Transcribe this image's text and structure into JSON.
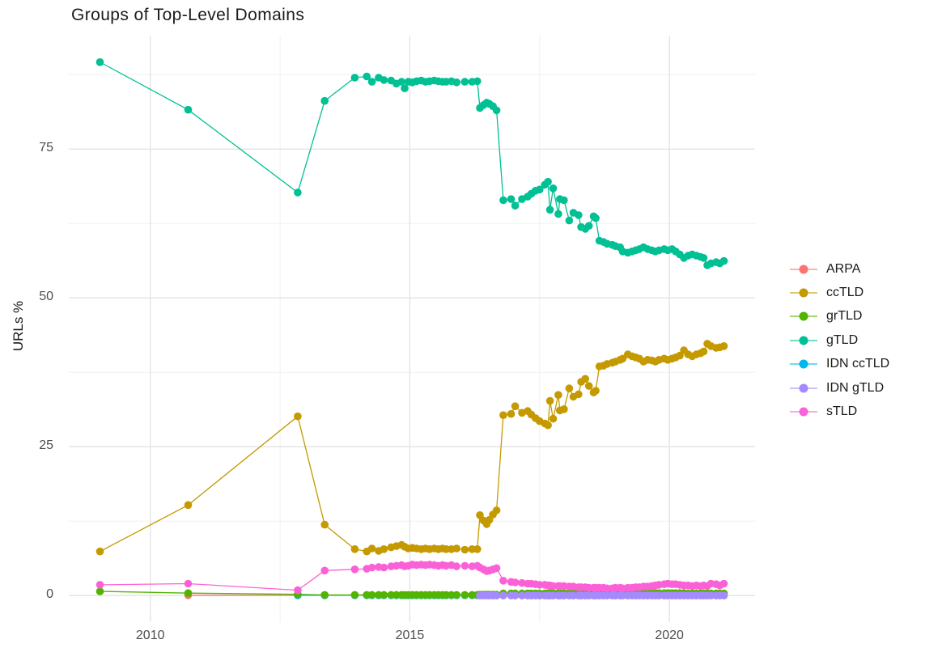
{
  "chart_data": {
    "type": "scatter",
    "title": "Groups of Top-Level Domains",
    "xlabel": "",
    "ylabel": "URLs %",
    "grid": true,
    "legend_position": "right",
    "x_axis": {
      "ticks": [
        2010,
        2015,
        2020
      ],
      "minor_ticks": [
        2012.5,
        2017.5
      ],
      "range": [
        2008.43,
        2021.65
      ]
    },
    "y_axis": {
      "ticks": [
        0,
        25,
        50,
        75
      ],
      "minor_ticks": [
        12.5,
        37.5,
        62.5,
        87.5
      ],
      "range": [
        -4.46,
        94.06
      ]
    },
    "x": [
      2009.03,
      2010.73,
      2012.84,
      2013.36,
      2013.94,
      2014.17,
      2014.27,
      2014.4,
      2014.5,
      2014.64,
      2014.74,
      2014.84,
      2014.9,
      2014.97,
      2015.05,
      2015.13,
      2015.22,
      2015.3,
      2015.38,
      2015.47,
      2015.55,
      2015.63,
      2015.7,
      2015.8,
      2015.9,
      2016.06,
      2016.2,
      2016.3,
      2016.35,
      2016.42,
      2016.48,
      2016.53,
      2016.6,
      2016.67,
      2016.8,
      2016.95,
      2017.03,
      2017.16,
      2017.27,
      2017.34,
      2017.42,
      2017.5,
      2017.6,
      2017.66,
      2017.7,
      2017.76,
      2017.86,
      2017.89,
      2017.97,
      2018.07,
      2018.15,
      2018.25,
      2018.3,
      2018.38,
      2018.45,
      2018.54,
      2018.58,
      2018.65,
      2018.73,
      2018.8,
      2018.9,
      2018.96,
      2019.05,
      2019.1,
      2019.2,
      2019.28,
      2019.35,
      2019.42,
      2019.5,
      2019.58,
      2019.66,
      2019.73,
      2019.8,
      2019.9,
      2019.97,
      2020.05,
      2020.12,
      2020.2,
      2020.28,
      2020.36,
      2020.44,
      2020.52,
      2020.6,
      2020.66,
      2020.73,
      2020.8,
      2020.9,
      2020.97,
      2021.05
    ],
    "legend_order": [
      "ARPA",
      "ccTLD",
      "grTLD",
      "gTLD",
      "IDN ccTLD",
      "IDN gTLD",
      "sTLD"
    ],
    "series": [
      {
        "name": "ARPA",
        "color": "#F8766D",
        "points": [
          [
            2010.73,
            0.05
          ],
          [
            2012.84,
            0.05
          ],
          [
            2013.36,
            0.05
          ]
        ]
      },
      {
        "name": "ccTLD",
        "color": "#C49A00",
        "values": [
          7.4,
          15.2,
          30.1,
          11.9,
          7.8,
          7.4,
          7.9,
          7.5,
          7.8,
          8.1,
          8.3,
          8.5,
          8.2,
          7.9,
          8.0,
          7.9,
          7.8,
          7.9,
          7.8,
          7.9,
          7.8,
          7.9,
          7.8,
          7.8,
          7.9,
          7.7,
          7.8,
          7.8,
          13.5,
          12.6,
          12.0,
          12.7,
          13.6,
          14.3,
          30.3,
          30.5,
          31.8,
          30.7,
          31.0,
          30.4,
          29.8,
          29.3,
          28.9,
          28.6,
          32.7,
          29.7,
          33.7,
          31.1,
          31.3,
          34.8,
          33.4,
          33.8,
          35.9,
          36.4,
          35.2,
          34.1,
          34.4,
          38.5,
          38.6,
          38.9,
          39.1,
          39.3,
          39.6,
          39.8,
          40.5,
          40.2,
          40.0,
          39.8,
          39.3,
          39.6,
          39.5,
          39.3,
          39.6,
          39.8,
          39.6,
          39.8,
          40.0,
          40.3,
          41.2,
          40.5,
          40.2,
          40.5,
          40.7,
          41.0,
          42.3,
          41.9,
          41.6,
          41.7,
          41.9
        ]
      },
      {
        "name": "IDN ccTLD",
        "color": "#00B6EB",
        "x_subset_from": 2012.84,
        "constant_value": 0.05
      },
      {
        "name": "grTLD",
        "color": "#53B400",
        "values": [
          0.7,
          0.4,
          0.2,
          0.1,
          0.1,
          0.1,
          0.1,
          0.1,
          0.1,
          0.1,
          0.1,
          0.1,
          0.1,
          0.1,
          0.1,
          0.1,
          0.1,
          0.1,
          0.1,
          0.1,
          0.1,
          0.1,
          0.1,
          0.1,
          0.1,
          0.1,
          0.1,
          0.1,
          0.15,
          0.15,
          0.15,
          0.15,
          0.15,
          0.15,
          0.35,
          0.35,
          0.35,
          0.35,
          0.35,
          0.35,
          0.35,
          0.35,
          0.35,
          0.35,
          0.4,
          0.4,
          0.4,
          0.4,
          0.4,
          0.4,
          0.4,
          0.4,
          0.4,
          0.4,
          0.45,
          0.45,
          0.45,
          0.45,
          0.45,
          0.45,
          0.45,
          0.45,
          0.45,
          0.45,
          0.45,
          0.45,
          0.45,
          0.45,
          0.45,
          0.4,
          0.4,
          0.4,
          0.4,
          0.4,
          0.4,
          0.4,
          0.4,
          0.4,
          0.4,
          0.35,
          0.35,
          0.35,
          0.35,
          0.35,
          0.35,
          0.35,
          0.35,
          0.35,
          0.35
        ]
      },
      {
        "name": "gTLD",
        "color": "#00C094",
        "values": [
          89.6,
          81.6,
          67.7,
          83.1,
          87.0,
          87.2,
          86.3,
          87.0,
          86.6,
          86.5,
          86.0,
          86.3,
          85.2,
          86.3,
          86.2,
          86.4,
          86.5,
          86.3,
          86.4,
          86.5,
          86.4,
          86.3,
          86.3,
          86.4,
          86.2,
          86.3,
          86.3,
          86.4,
          81.9,
          82.4,
          82.8,
          82.6,
          82.2,
          81.5,
          66.4,
          66.6,
          65.5,
          66.6,
          67.0,
          67.5,
          68.0,
          68.2,
          69.0,
          69.5,
          64.8,
          68.4,
          64.1,
          66.6,
          66.4,
          63.0,
          64.3,
          63.9,
          61.9,
          61.6,
          62.1,
          63.7,
          63.4,
          59.6,
          59.4,
          59.1,
          58.9,
          58.7,
          58.5,
          57.8,
          57.6,
          57.8,
          58.0,
          58.2,
          58.5,
          58.2,
          58.0,
          57.8,
          58.0,
          58.2,
          58.0,
          58.2,
          57.8,
          57.3,
          56.7,
          57.1,
          57.3,
          57.1,
          56.9,
          56.7,
          55.5,
          55.8,
          56.0,
          55.8,
          56.2
        ]
      },
      {
        "name": "IDN gTLD",
        "color": "#A58AFF",
        "x_subset_from": 2016.35,
        "constant_value": 0.0
      },
      {
        "name": "sTLD",
        "color": "#FB61D7",
        "values": [
          1.8,
          2.0,
          0.9,
          4.2,
          4.4,
          4.5,
          4.7,
          4.8,
          4.7,
          4.9,
          5.0,
          5.1,
          4.9,
          5.0,
          5.2,
          5.1,
          5.2,
          5.1,
          5.2,
          5.1,
          5.0,
          5.1,
          5.0,
          5.1,
          4.9,
          5.0,
          4.9,
          5.0,
          4.7,
          4.4,
          4.1,
          4.2,
          4.4,
          4.6,
          2.5,
          2.3,
          2.2,
          2.1,
          2.0,
          2.0,
          1.9,
          1.8,
          1.8,
          1.7,
          1.7,
          1.6,
          1.6,
          1.6,
          1.6,
          1.5,
          1.5,
          1.4,
          1.4,
          1.4,
          1.3,
          1.3,
          1.3,
          1.3,
          1.3,
          1.2,
          1.2,
          1.3,
          1.3,
          1.2,
          1.3,
          1.3,
          1.4,
          1.4,
          1.5,
          1.5,
          1.6,
          1.7,
          1.8,
          1.9,
          2.0,
          1.9,
          1.9,
          1.8,
          1.7,
          1.7,
          1.6,
          1.7,
          1.6,
          1.7,
          1.6,
          2.0,
          1.9,
          1.7,
          2.0
        ]
      }
    ],
    "style": {
      "grid_major_color": "#E3E3E3",
      "grid_minor_color": "#F0F0F0",
      "point_radius": 4.8,
      "line_width": 1.3,
      "background": "#ffffff",
      "tick_label_color": "#4d4d4d",
      "text_color": "#1a1a1a"
    }
  }
}
